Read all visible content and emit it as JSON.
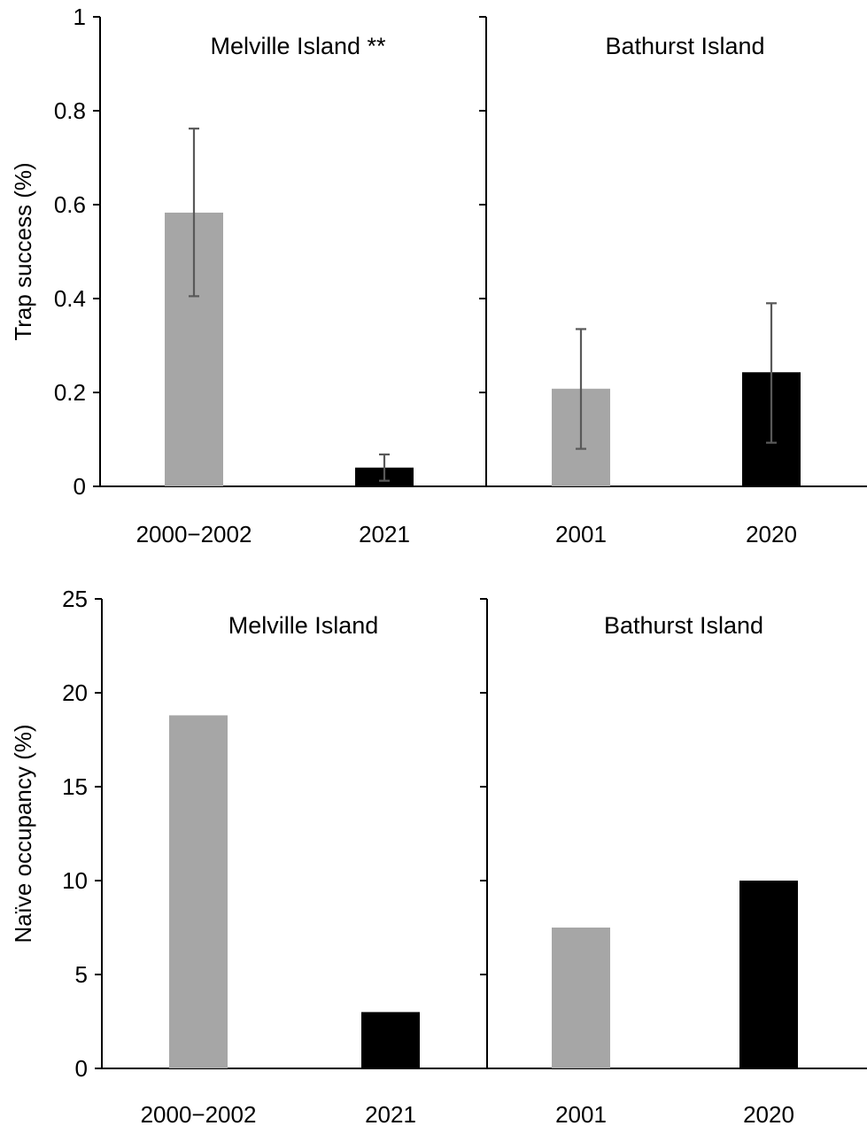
{
  "chart_data": [
    {
      "type": "bar",
      "ylabel": "Trap success (%)",
      "ylim": [
        0,
        1
      ],
      "yticks": [
        "0",
        "0.2",
        "0.4",
        "0.6",
        "0.8",
        "1"
      ],
      "yticks_values": [
        0,
        0.2,
        0.4,
        0.6,
        0.8,
        1
      ],
      "panels": [
        {
          "title": "Melville Island **",
          "categories": [
            "2000−2002",
            "2021"
          ],
          "values": [
            0.583,
            0.04
          ],
          "error_low": [
            0.405,
            0.012
          ],
          "error_high": [
            0.762,
            0.068
          ],
          "colors": [
            "#a6a6a6",
            "#000000"
          ]
        },
        {
          "title": "Bathurst Island",
          "categories": [
            "2001",
            "2020"
          ],
          "values": [
            0.208,
            0.243
          ],
          "error_low": [
            0.08,
            0.093
          ],
          "error_high": [
            0.335,
            0.39
          ],
          "colors": [
            "#a6a6a6",
            "#000000"
          ]
        }
      ]
    },
    {
      "type": "bar",
      "ylabel": "Naïve occupancy (%)",
      "ylim": [
        0,
        25
      ],
      "yticks": [
        "0",
        "5",
        "10",
        "15",
        "20",
        "25"
      ],
      "yticks_values": [
        0,
        5,
        10,
        15,
        20,
        25
      ],
      "panels": [
        {
          "title": "Melville Island",
          "categories": [
            "2000−2002",
            "2021"
          ],
          "values": [
            18.8,
            3.0
          ],
          "colors": [
            "#a6a6a6",
            "#000000"
          ]
        },
        {
          "title": "Bathurst Island",
          "categories": [
            "2001",
            "2020"
          ],
          "values": [
            7.5,
            10.0
          ],
          "colors": [
            "#a6a6a6",
            "#000000"
          ]
        }
      ]
    }
  ]
}
